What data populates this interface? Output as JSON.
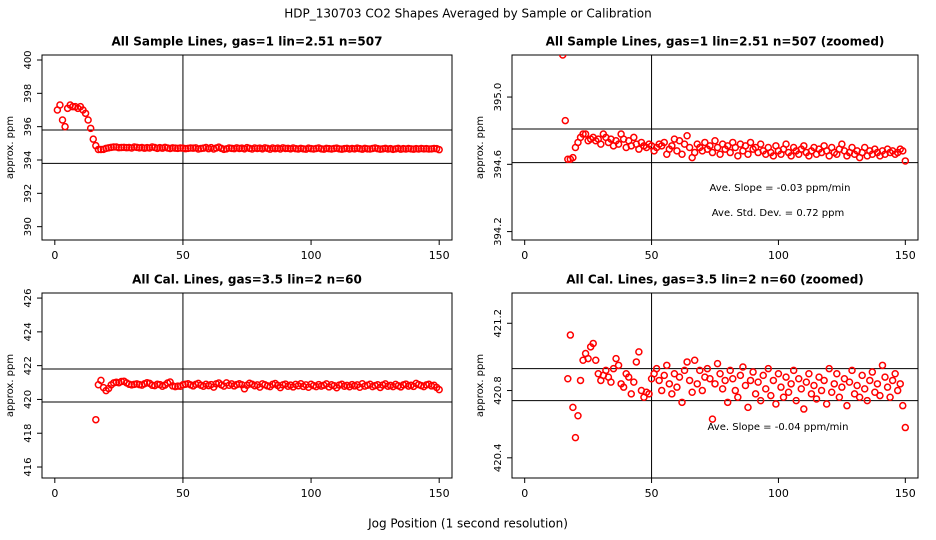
{
  "title": "HDP_130703  CO2 Shapes Averaged by Sample or Calibration",
  "x_label": "Jog Position (1 second resolution)",
  "chart_data": [
    {
      "type": "scatter",
      "title": "All Sample Lines, gas=1 lin=2.51 n=507",
      "y_label": "approx. ppm",
      "color": "#ff0000",
      "xlim": [
        -5,
        155
      ],
      "ylim": [
        389.2,
        400.3
      ],
      "xticks": [
        0,
        50,
        100,
        150
      ],
      "yticks": [
        390,
        392,
        394,
        396,
        398,
        400
      ],
      "vline": 50,
      "hlines": [
        395.8,
        393.8
      ],
      "x": [
        1,
        2,
        3,
        4,
        5,
        6,
        7,
        8,
        9,
        10,
        11,
        12,
        13,
        14,
        15,
        16,
        17,
        18,
        19,
        20,
        21,
        22,
        23,
        24,
        25,
        26,
        27,
        28,
        29,
        30,
        31,
        32,
        33,
        34,
        35,
        36,
        37,
        38,
        39,
        40,
        41,
        42,
        43,
        44,
        45,
        46,
        47,
        48,
        49,
        50,
        51,
        52,
        53,
        54,
        55,
        56,
        57,
        58,
        59,
        60,
        61,
        62,
        63,
        64,
        65,
        66,
        67,
        68,
        69,
        70,
        71,
        72,
        73,
        74,
        75,
        76,
        77,
        78,
        79,
        80,
        81,
        82,
        83,
        84,
        85,
        86,
        87,
        88,
        89,
        90,
        91,
        92,
        93,
        94,
        95,
        96,
        97,
        98,
        99,
        100,
        101,
        102,
        103,
        104,
        105,
        106,
        107,
        108,
        109,
        110,
        111,
        112,
        113,
        114,
        115,
        116,
        117,
        118,
        119,
        120,
        121,
        122,
        123,
        124,
        125,
        126,
        127,
        128,
        129,
        130,
        131,
        132,
        133,
        134,
        135,
        136,
        137,
        138,
        139,
        140,
        141,
        142,
        143,
        144,
        145,
        146,
        147,
        148,
        149,
        150
      ],
      "values": [
        397.0,
        397.3,
        396.4,
        396.0,
        397.1,
        397.3,
        397.2,
        397.2,
        397.1,
        397.2,
        397.0,
        396.8,
        396.4,
        395.9,
        395.25,
        394.86,
        394.63,
        394.63,
        394.64,
        394.7,
        394.73,
        394.76,
        394.78,
        394.78,
        394.74,
        394.75,
        394.76,
        394.74,
        394.75,
        394.72,
        394.78,
        394.76,
        394.73,
        394.75,
        394.71,
        394.74,
        394.72,
        394.78,
        394.75,
        394.7,
        394.74,
        394.71,
        394.76,
        394.72,
        394.69,
        394.73,
        394.71,
        394.7,
        394.72,
        394.71,
        394.68,
        394.7,
        394.72,
        394.71,
        394.73,
        394.66,
        394.69,
        394.71,
        394.75,
        394.68,
        394.74,
        394.66,
        394.72,
        394.77,
        394.7,
        394.64,
        394.67,
        394.72,
        394.7,
        394.68,
        394.73,
        394.69,
        394.71,
        394.67,
        394.74,
        394.7,
        394.66,
        394.72,
        394.69,
        394.71,
        394.67,
        394.73,
        394.7,
        394.65,
        394.72,
        394.68,
        394.71,
        394.66,
        394.73,
        394.69,
        394.7,
        394.67,
        394.72,
        394.68,
        394.66,
        394.7,
        394.67,
        394.65,
        394.71,
        394.68,
        394.66,
        394.69,
        394.72,
        394.67,
        394.65,
        394.7,
        394.68,
        394.66,
        394.69,
        394.71,
        394.67,
        394.65,
        394.68,
        394.7,
        394.66,
        394.69,
        394.67,
        394.71,
        394.68,
        394.65,
        394.7,
        394.67,
        394.66,
        394.69,
        394.72,
        394.68,
        394.65,
        394.67,
        394.7,
        394.66,
        394.68,
        394.64,
        394.67,
        394.7,
        394.65,
        394.68,
        394.66,
        394.69,
        394.67,
        394.65,
        394.68,
        394.66,
        394.69,
        394.67,
        394.68,
        394.66,
        394.67,
        394.69,
        394.68,
        394.62
      ],
      "annotations": []
    },
    {
      "type": "scatter",
      "title": "All Sample Lines, gas=1 lin=2.51 n=507 (zoomed)",
      "y_label": "approx. ppm",
      "color": "#ff0000",
      "xlim": [
        -5,
        155
      ],
      "ylim": [
        394.15,
        395.25
      ],
      "xticks": [
        0,
        50,
        100,
        150
      ],
      "yticks": [
        394.2,
        394.6,
        {
          "value": 395,
          "label": "395.0"
        }
      ],
      "vline": 50,
      "hlines": [
        394.81,
        394.61
      ],
      "x": [
        15,
        16,
        17,
        18,
        19,
        20,
        21,
        22,
        23,
        24,
        25,
        26,
        27,
        28,
        29,
        30,
        31,
        32,
        33,
        34,
        35,
        36,
        37,
        38,
        39,
        40,
        41,
        42,
        43,
        44,
        45,
        46,
        47,
        48,
        49,
        50,
        51,
        52,
        53,
        54,
        55,
        56,
        57,
        58,
        59,
        60,
        61,
        62,
        63,
        64,
        65,
        66,
        67,
        68,
        69,
        70,
        71,
        72,
        73,
        74,
        75,
        76,
        77,
        78,
        79,
        80,
        81,
        82,
        83,
        84,
        85,
        86,
        87,
        88,
        89,
        90,
        91,
        92,
        93,
        94,
        95,
        96,
        97,
        98,
        99,
        100,
        101,
        102,
        103,
        104,
        105,
        106,
        107,
        108,
        109,
        110,
        111,
        112,
        113,
        114,
        115,
        116,
        117,
        118,
        119,
        120,
        121,
        122,
        123,
        124,
        125,
        126,
        127,
        128,
        129,
        130,
        131,
        132,
        133,
        134,
        135,
        136,
        137,
        138,
        139,
        140,
        141,
        142,
        143,
        144,
        145,
        146,
        147,
        148,
        149,
        150
      ],
      "values": [
        395.25,
        394.86,
        394.63,
        394.63,
        394.64,
        394.7,
        394.73,
        394.76,
        394.78,
        394.78,
        394.74,
        394.75,
        394.76,
        394.74,
        394.75,
        394.72,
        394.78,
        394.76,
        394.73,
        394.75,
        394.71,
        394.74,
        394.72,
        394.78,
        394.75,
        394.7,
        394.74,
        394.71,
        394.76,
        394.72,
        394.69,
        394.73,
        394.71,
        394.7,
        394.72,
        394.71,
        394.68,
        394.7,
        394.72,
        394.71,
        394.73,
        394.66,
        394.69,
        394.71,
        394.75,
        394.68,
        394.74,
        394.66,
        394.72,
        394.77,
        394.7,
        394.64,
        394.67,
        394.72,
        394.7,
        394.68,
        394.73,
        394.69,
        394.71,
        394.67,
        394.74,
        394.7,
        394.66,
        394.72,
        394.69,
        394.71,
        394.67,
        394.73,
        394.7,
        394.65,
        394.72,
        394.68,
        394.71,
        394.66,
        394.73,
        394.69,
        394.7,
        394.67,
        394.72,
        394.68,
        394.66,
        394.7,
        394.67,
        394.65,
        394.71,
        394.68,
        394.66,
        394.69,
        394.72,
        394.67,
        394.65,
        394.7,
        394.68,
        394.66,
        394.69,
        394.71,
        394.67,
        394.65,
        394.68,
        394.7,
        394.66,
        394.69,
        394.67,
        394.71,
        394.68,
        394.65,
        394.7,
        394.67,
        394.66,
        394.69,
        394.72,
        394.68,
        394.65,
        394.67,
        394.7,
        394.66,
        394.68,
        394.64,
        394.67,
        394.7,
        394.65,
        394.68,
        394.66,
        394.69,
        394.67,
        394.65,
        394.68,
        394.66,
        394.69,
        394.67,
        394.68,
        394.66,
        394.67,
        394.69,
        394.68,
        394.62
      ],
      "annotations": [
        "Ave. Slope =  -0.03  ppm/min",
        "Ave. Std. Dev. =  0.72  ppm"
      ]
    },
    {
      "type": "scatter",
      "title": "All Cal. Lines, gas=3.5 lin=2 n=60",
      "y_label": "approx. ppm",
      "color": "#ff0000",
      "xlim": [
        -5,
        155
      ],
      "ylim": [
        415.35,
        426.3
      ],
      "xticks": [
        0,
        50,
        100,
        150
      ],
      "yticks": [
        416,
        418,
        420,
        422,
        424,
        426
      ],
      "vline": 50,
      "hlines": [
        421.8,
        419.85
      ],
      "x": [
        16,
        17,
        18,
        19,
        20,
        21,
        22,
        23,
        24,
        25,
        26,
        27,
        28,
        29,
        30,
        31,
        32,
        33,
        34,
        35,
        36,
        37,
        38,
        39,
        40,
        41,
        42,
        43,
        44,
        45,
        46,
        47,
        48,
        49,
        50,
        51,
        52,
        53,
        54,
        55,
        56,
        57,
        58,
        59,
        60,
        61,
        62,
        63,
        64,
        65,
        66,
        67,
        68,
        69,
        70,
        71,
        72,
        73,
        74,
        75,
        76,
        77,
        78,
        79,
        80,
        81,
        82,
        83,
        84,
        85,
        86,
        87,
        88,
        89,
        90,
        91,
        92,
        93,
        94,
        95,
        96,
        97,
        98,
        99,
        100,
        101,
        102,
        103,
        104,
        105,
        106,
        107,
        108,
        109,
        110,
        111,
        112,
        113,
        114,
        115,
        116,
        117,
        118,
        119,
        120,
        121,
        122,
        123,
        124,
        125,
        126,
        127,
        128,
        129,
        130,
        131,
        132,
        133,
        134,
        135,
        136,
        137,
        138,
        139,
        140,
        141,
        142,
        143,
        144,
        145,
        146,
        147,
        148,
        149,
        150
      ],
      "values": [
        418.8,
        420.87,
        421.13,
        420.7,
        420.52,
        420.65,
        420.86,
        420.98,
        421.02,
        420.99,
        421.06,
        421.08,
        420.98,
        420.9,
        420.86,
        420.89,
        420.92,
        420.88,
        420.85,
        420.93,
        420.99,
        420.95,
        420.84,
        420.82,
        420.9,
        420.88,
        420.78,
        420.85,
        420.97,
        421.03,
        420.8,
        420.76,
        420.79,
        420.78,
        420.87,
        420.9,
        420.93,
        420.86,
        420.8,
        420.89,
        420.95,
        420.84,
        420.78,
        420.9,
        420.82,
        420.88,
        420.73,
        420.92,
        420.97,
        420.86,
        420.79,
        420.98,
        420.84,
        420.92,
        420.8,
        420.88,
        420.93,
        420.87,
        420.63,
        420.84,
        420.96,
        420.9,
        420.81,
        420.86,
        420.73,
        420.92,
        420.87,
        420.8,
        420.76,
        420.89,
        420.94,
        420.83,
        420.7,
        420.86,
        420.91,
        420.78,
        420.85,
        420.74,
        420.89,
        420.81,
        420.93,
        420.77,
        420.86,
        420.72,
        420.9,
        420.82,
        420.76,
        420.88,
        420.79,
        420.84,
        420.92,
        420.74,
        420.87,
        420.81,
        420.69,
        420.85,
        420.9,
        420.78,
        420.83,
        420.75,
        420.88,
        420.8,
        420.86,
        420.72,
        420.93,
        420.79,
        420.84,
        420.9,
        420.76,
        420.82,
        420.87,
        420.71,
        420.85,
        420.92,
        420.78,
        420.83,
        420.76,
        420.89,
        420.81,
        420.74,
        420.86,
        420.91,
        420.79,
        420.84,
        420.77,
        420.95,
        420.88,
        420.82,
        420.76,
        420.86,
        420.9,
        420.8,
        420.84,
        420.71,
        420.58
      ],
      "annotations": []
    },
    {
      "type": "scatter",
      "title": "All Cal. Lines, gas=3.5 lin=2 n=60 (zoomed)",
      "y_label": "approx. ppm",
      "color": "#ff0000",
      "xlim": [
        -5,
        155
      ],
      "ylim": [
        420.28,
        421.38
      ],
      "xticks": [
        0,
        50,
        100,
        150
      ],
      "yticks": [
        420.4,
        420.8,
        421.2
      ],
      "vline": 50,
      "hlines": [
        420.93,
        420.74
      ],
      "x": [
        17,
        18,
        19,
        20,
        21,
        22,
        23,
        24,
        25,
        26,
        27,
        28,
        29,
        30,
        31,
        32,
        33,
        34,
        35,
        36,
        37,
        38,
        39,
        40,
        41,
        42,
        43,
        44,
        45,
        46,
        47,
        48,
        49,
        50,
        51,
        52,
        53,
        54,
        55,
        56,
        57,
        58,
        59,
        60,
        61,
        62,
        63,
        64,
        65,
        66,
        67,
        68,
        69,
        70,
        71,
        72,
        73,
        74,
        75,
        76,
        77,
        78,
        79,
        80,
        81,
        82,
        83,
        84,
        85,
        86,
        87,
        88,
        89,
        90,
        91,
        92,
        93,
        94,
        95,
        96,
        97,
        98,
        99,
        100,
        101,
        102,
        103,
        104,
        105,
        106,
        107,
        108,
        109,
        110,
        111,
        112,
        113,
        114,
        115,
        116,
        117,
        118,
        119,
        120,
        121,
        122,
        123,
        124,
        125,
        126,
        127,
        128,
        129,
        130,
        131,
        132,
        133,
        134,
        135,
        136,
        137,
        138,
        139,
        140,
        141,
        142,
        143,
        144,
        145,
        146,
        147,
        148,
        149,
        150
      ],
      "values": [
        420.87,
        421.13,
        420.7,
        420.52,
        420.65,
        420.86,
        420.98,
        421.02,
        420.99,
        421.06,
        421.08,
        420.98,
        420.9,
        420.86,
        420.89,
        420.92,
        420.88,
        420.85,
        420.93,
        420.99,
        420.95,
        420.84,
        420.82,
        420.9,
        420.88,
        420.78,
        420.85,
        420.97,
        421.03,
        420.8,
        420.76,
        420.79,
        420.78,
        420.87,
        420.9,
        420.93,
        420.86,
        420.8,
        420.89,
        420.95,
        420.84,
        420.78,
        420.9,
        420.82,
        420.88,
        420.73,
        420.92,
        420.97,
        420.86,
        420.79,
        420.98,
        420.84,
        420.92,
        420.8,
        420.88,
        420.93,
        420.87,
        420.63,
        420.84,
        420.96,
        420.9,
        420.81,
        420.86,
        420.73,
        420.92,
        420.87,
        420.8,
        420.76,
        420.89,
        420.94,
        420.83,
        420.7,
        420.86,
        420.91,
        420.78,
        420.85,
        420.74,
        420.89,
        420.81,
        420.93,
        420.77,
        420.86,
        420.72,
        420.9,
        420.82,
        420.76,
        420.88,
        420.79,
        420.84,
        420.92,
        420.74,
        420.87,
        420.81,
        420.69,
        420.85,
        420.9,
        420.78,
        420.83,
        420.75,
        420.88,
        420.8,
        420.86,
        420.72,
        420.93,
        420.79,
        420.84,
        420.9,
        420.76,
        420.82,
        420.87,
        420.71,
        420.85,
        420.92,
        420.78,
        420.83,
        420.76,
        420.89,
        420.81,
        420.74,
        420.86,
        420.91,
        420.79,
        420.84,
        420.77,
        420.95,
        420.88,
        420.82,
        420.76,
        420.86,
        420.9,
        420.8,
        420.84,
        420.71,
        420.58
      ],
      "annotations": [
        "Ave. Slope =  -0.04  ppm/min"
      ]
    }
  ]
}
